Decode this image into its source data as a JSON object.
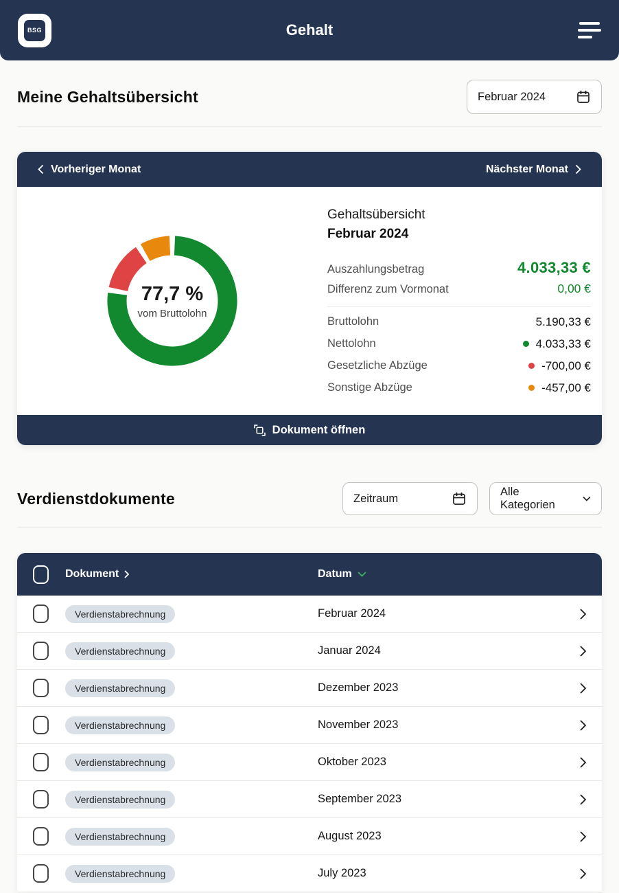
{
  "colors": {
    "navy": "#253450",
    "green": "#12892F",
    "red": "#DF4343",
    "orange": "#E8880D",
    "sort_chevron_green": "#3FAE64",
    "badge_bg": "#D9E0E7",
    "page_bg": "#FAFAF8"
  },
  "icons": {
    "logo": "BSG app mark",
    "menu": "hamburger-3-lines",
    "calendar": "outline calendar with binder tabs",
    "chevron_left": "‹",
    "chevron_right": "›",
    "chevron_down": "⌄",
    "open_document": "square with corner brackets"
  },
  "header": {
    "logo_text": "BSG",
    "title": "Gehalt"
  },
  "overview": {
    "heading": "Meine Gehaltsübersicht",
    "month_picker_value": "Februar 2024"
  },
  "salary_card": {
    "prev_month": "Vorheriger Monat",
    "next_month": "Nächster Monat",
    "details": {
      "title": "Gehaltsübersicht",
      "month": "Februar 2024",
      "payout_label": "Auszahlungsbetrag",
      "payout_value": "4.033,33 €",
      "diff_label": "Differenz zum Vormonat",
      "diff_value": "0,00 €"
    },
    "breakdown": [
      {
        "label": "Bruttolohn",
        "value": "5.190,33 €"
      },
      {
        "label": "Nettolohn",
        "value": "4.033,33 €",
        "dot_color": "#12892F"
      },
      {
        "label": "Gesetzliche Abzüge",
        "value": "-700,00 €",
        "dot_color": "#DF4343"
      },
      {
        "label": "Sonstige Abzüge",
        "value": "-457,00 €",
        "dot_color": "#E8880D"
      }
    ],
    "open_document": "Dokument öffnen"
  },
  "chart_data": {
    "type": "pie",
    "donut": true,
    "title": "Gehaltsübersicht Februar 2024",
    "center_label": "77,7 %",
    "center_caption": "vom Bruttolohn",
    "total_label": "Bruttolohn",
    "total_amount_eur": 5190.33,
    "segments": [
      {
        "name": "Nettolohn",
        "percent": 77.7,
        "amount_eur": 4033.33,
        "color": "#12892F"
      },
      {
        "name": "Gesetzliche Abzüge",
        "percent": 13.5,
        "amount_eur": -700.0,
        "color": "#DF4343"
      },
      {
        "name": "Sonstige Abzüge",
        "percent": 8.8,
        "amount_eur": -457.0,
        "color": "#E8880D"
      }
    ]
  },
  "documents": {
    "heading": "Verdienstdokumente",
    "period_filter": "Zeitraum",
    "category_filter": "Alle Kategorien",
    "table": {
      "col_document": "Dokument",
      "col_date": "Datum",
      "rows": [
        {
          "category": "Verdienstabrechnung",
          "date": "Februar 2024"
        },
        {
          "category": "Verdienstabrechnung",
          "date": "Januar 2024"
        },
        {
          "category": "Verdienstabrechnung",
          "date": "Dezember 2023"
        },
        {
          "category": "Verdienstabrechnung",
          "date": "November 2023"
        },
        {
          "category": "Verdienstabrechnung",
          "date": "Oktober 2023"
        },
        {
          "category": "Verdienstabrechnung",
          "date": "September 2023"
        },
        {
          "category": "Verdienstabrechnung",
          "date": "August 2023"
        },
        {
          "category": "Verdienstabrechnung",
          "date": "July 2023"
        }
      ]
    }
  }
}
